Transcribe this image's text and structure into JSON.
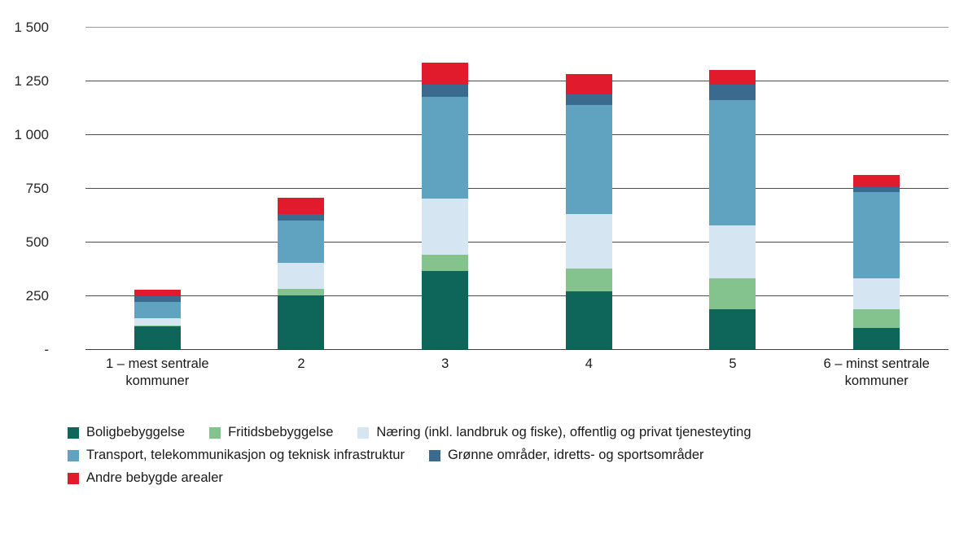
{
  "chart_data": {
    "type": "bar",
    "stacked": true,
    "title": "",
    "xlabel": "",
    "ylabel": "",
    "categories": [
      "1 – mest sentrale kommuner",
      "2",
      "3",
      "4",
      "5",
      "6 – minst sentrale kommuner"
    ],
    "series": [
      {
        "name": "Boligbebyggelse",
        "color": "#0E665B",
        "values": [
          105,
          250,
          365,
          270,
          185,
          100
        ]
      },
      {
        "name": "Fritidsbebyggelse",
        "color": "#84C28E",
        "values": [
          5,
          30,
          75,
          105,
          145,
          85
        ]
      },
      {
        "name": "Næring (inkl. landbruk og fiske), offentlig og privat tjenesteyting",
        "color": "#D5E6F2",
        "values": [
          35,
          120,
          260,
          255,
          245,
          145
        ]
      },
      {
        "name": "Transport, telekommunikasjon og teknisk infrastruktur",
        "color": "#60A3C1",
        "values": [
          75,
          200,
          475,
          505,
          585,
          400
        ]
      },
      {
        "name": "Grønne områder, idretts- og sportsområder",
        "color": "#3A6B8F",
        "values": [
          25,
          30,
          55,
          50,
          70,
          25
        ]
      },
      {
        "name": "Andre bebygde arealer",
        "color": "#E11B2C",
        "values": [
          30,
          75,
          105,
          95,
          70,
          55
        ]
      }
    ],
    "y_ticks": [
      {
        "label": "1 500",
        "value": 1500
      },
      {
        "label": "1 250",
        "value": 1250
      },
      {
        "label": "1 000",
        "value": 1000
      },
      {
        "label": "750",
        "value": 750
      },
      {
        "label": "500",
        "value": 500
      },
      {
        "label": "250",
        "value": 250
      },
      {
        "label": "-",
        "value": 0
      }
    ],
    "ylim": [
      0,
      1500
    ],
    "grid": true,
    "legend_position": "bottom",
    "legend_rows": [
      [
        0,
        1,
        2
      ],
      [
        3,
        4
      ],
      [
        5
      ]
    ]
  }
}
